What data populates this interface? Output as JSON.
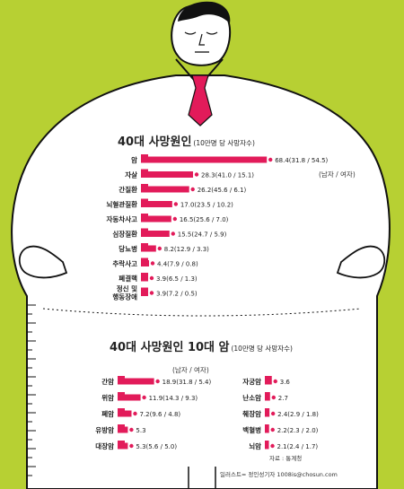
{
  "headline1": {
    "main": "40대 사망원인",
    "sub": "(10만명 당 사망자수)"
  },
  "headline2": {
    "main": "40대 사망원인 10대 암",
    "sub": "(10만명 당 사망자수)"
  },
  "legend_text": "(남자 / 여자)",
  "source_text": "자료 : 통계청",
  "credit_text": "일러스트= 정인성기자 1008is@chosun.com",
  "colors": {
    "bar": "#e21b5a",
    "background": "#b7d033",
    "body": "#ffffff",
    "tie": "#e21b5a"
  },
  "chart_data": [
    {
      "type": "bar",
      "orientation": "horizontal",
      "title": "40대 사망원인",
      "subtitle": "(10만명 당 사망자수)",
      "categories": [
        "암",
        "자살",
        "간질환",
        "뇌혈관질환",
        "자동차사고",
        "심장질환",
        "당뇨병",
        "추락사고",
        "폐결핵",
        "정신 및 행동장애"
      ],
      "values": [
        68.4,
        28.3,
        26.2,
        17.0,
        16.5,
        15.5,
        8.2,
        4.4,
        3.9,
        3.9
      ],
      "value_labels": [
        "68.4(31.8 / 54.5)",
        "28.3(41.0 / 15.1)",
        "26.2(45.6 / 6.1)",
        "17.0(23.5 / 10.2)",
        "16.5(25.6 / 7.0)",
        "15.5(24.7 / 5.9)",
        "8.2(12.9 / 3.3)",
        "4.4(7.9 / 0.8)",
        "3.9(6.5 / 1.3)",
        "3.9(7.2 / 0.5)"
      ]
    },
    {
      "type": "bar",
      "orientation": "horizontal",
      "title": "40대 사망원인 10대 암",
      "subtitle": "(10만명 당 사망자수)",
      "categories": [
        "간암",
        "위암",
        "폐암",
        "유방암",
        "대장암",
        "자궁암",
        "난소암",
        "췌장암",
        "백혈병",
        "뇌암"
      ],
      "values": [
        18.9,
        11.9,
        7.2,
        5.3,
        5.3,
        3.6,
        2.7,
        2.4,
        2.2,
        2.1
      ],
      "value_labels": [
        "18.9(31.8 / 5.4)",
        "11.9(14.3 / 9.3)",
        "7.2(9.6 / 4.8)",
        "5.3",
        "5.3(5.6 / 5.0)",
        "3.6",
        "2.7",
        "2.4(2.9 / 1.8)",
        "2.2(2.3 / 2.0)",
        "2.1(2.4 / 1.7)"
      ]
    }
  ]
}
